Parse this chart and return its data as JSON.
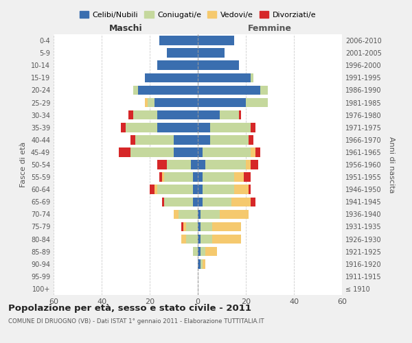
{
  "age_groups": [
    "100+",
    "95-99",
    "90-94",
    "85-89",
    "80-84",
    "75-79",
    "70-74",
    "65-69",
    "60-64",
    "55-59",
    "50-54",
    "45-49",
    "40-44",
    "35-39",
    "30-34",
    "25-29",
    "20-24",
    "15-19",
    "10-14",
    "5-9",
    "0-4"
  ],
  "birth_years": [
    "≤ 1910",
    "1911-1915",
    "1916-1920",
    "1921-1925",
    "1926-1930",
    "1931-1935",
    "1936-1940",
    "1941-1945",
    "1946-1950",
    "1951-1955",
    "1956-1960",
    "1961-1965",
    "1966-1970",
    "1971-1975",
    "1976-1980",
    "1981-1985",
    "1986-1990",
    "1991-1995",
    "1996-2000",
    "2001-2005",
    "2006-2010"
  ],
  "maschi": {
    "celibi": [
      0,
      0,
      0,
      0,
      0,
      0,
      0,
      2,
      2,
      2,
      3,
      10,
      10,
      17,
      17,
      18,
      25,
      22,
      17,
      13,
      16
    ],
    "coniugati": [
      0,
      0,
      0,
      2,
      5,
      5,
      8,
      12,
      15,
      12,
      10,
      18,
      16,
      13,
      10,
      3,
      2,
      0,
      0,
      0,
      0
    ],
    "vedovi": [
      0,
      0,
      0,
      0,
      2,
      1,
      2,
      0,
      1,
      1,
      0,
      0,
      0,
      0,
      0,
      1,
      0,
      0,
      0,
      0,
      0
    ],
    "divorziati": [
      0,
      0,
      0,
      0,
      0,
      1,
      0,
      1,
      2,
      1,
      4,
      5,
      2,
      2,
      2,
      0,
      0,
      0,
      0,
      0,
      0
    ]
  },
  "femmine": {
    "nubili": [
      0,
      0,
      1,
      1,
      1,
      1,
      1,
      2,
      2,
      2,
      3,
      2,
      5,
      5,
      9,
      20,
      26,
      22,
      17,
      11,
      15
    ],
    "coniugate": [
      0,
      0,
      1,
      2,
      5,
      5,
      8,
      12,
      13,
      13,
      17,
      20,
      16,
      17,
      8,
      9,
      3,
      1,
      0,
      0,
      0
    ],
    "vedove": [
      0,
      0,
      1,
      5,
      12,
      12,
      12,
      8,
      6,
      4,
      2,
      2,
      0,
      0,
      0,
      0,
      0,
      0,
      0,
      0,
      0
    ],
    "divorziate": [
      0,
      0,
      0,
      0,
      0,
      0,
      0,
      2,
      1,
      3,
      3,
      2,
      2,
      2,
      1,
      0,
      0,
      0,
      0,
      0,
      0
    ]
  },
  "colors": {
    "celibi": "#3a6eaf",
    "coniugati": "#c5d89d",
    "vedovi": "#f5c96e",
    "divorziati": "#d62728"
  },
  "xlim": 60,
  "title": "Popolazione per età, sesso e stato civile - 2011",
  "subtitle": "COMUNE DI DRUOGNO (VB) - Dati ISTAT 1° gennaio 2011 - Elaborazione TUTTITALIA.IT",
  "ylabel_left": "Fasce di età",
  "ylabel_right": "Anni di nascita",
  "xlabel_maschi": "Maschi",
  "xlabel_femmine": "Femmine",
  "bg_color": "#f0f0f0",
  "plot_bg": "#ffffff",
  "legend_labels": [
    "Celibi/Nubili",
    "Coniugati/e",
    "Vedovi/e",
    "Divorziati/e"
  ]
}
